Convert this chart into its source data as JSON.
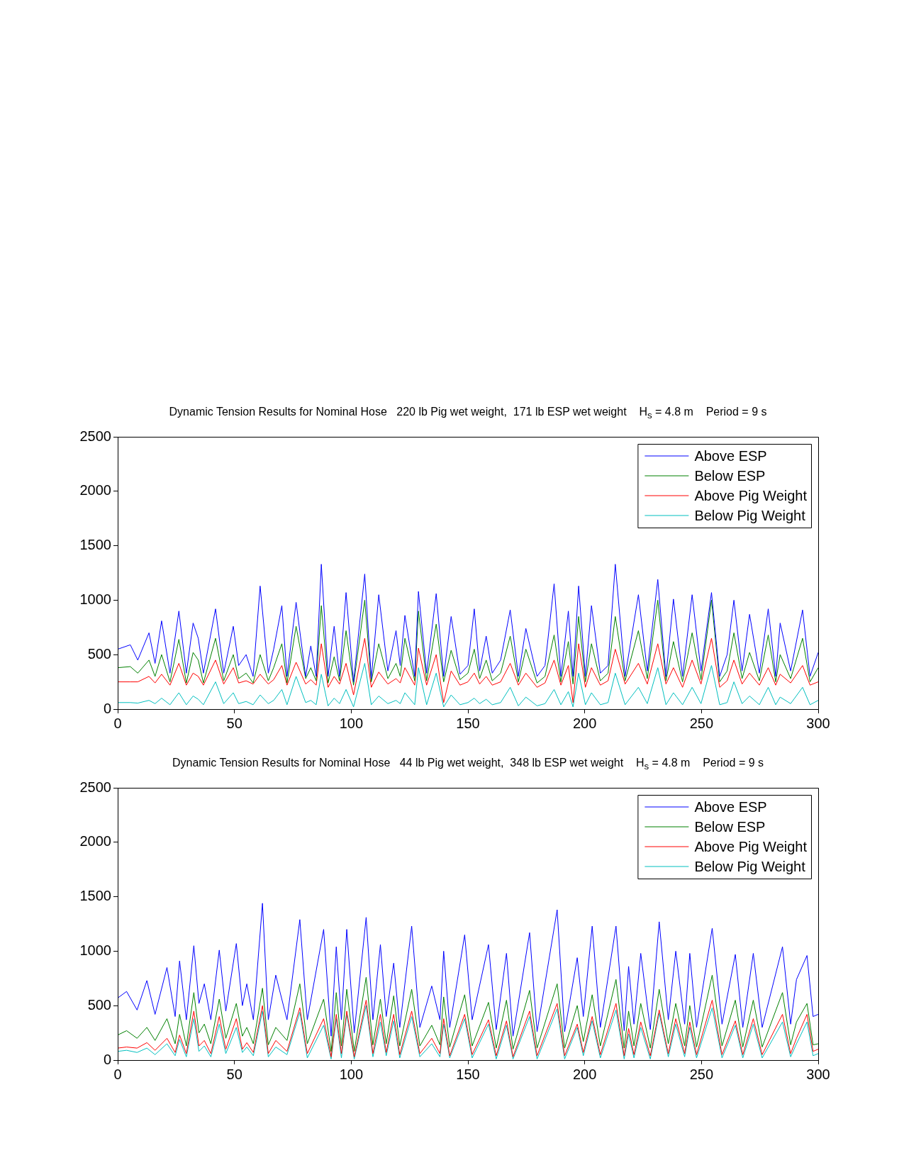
{
  "chart_data": [
    {
      "type": "line",
      "title": "Dynamic Tension Results for Nominal Hose   220 lb Pig wet weight,  171 lb ESP wet weight    H$_{s}$ = 4.8 m    Period = 9 s",
      "x": [
        0,
        5.4,
        8.6,
        13.4,
        16,
        18.8,
        22.4,
        26.2,
        29.4,
        32.3,
        34.5,
        36.7,
        41.9,
        45.4,
        49.5,
        51.8,
        55,
        58,
        61,
        64.5,
        66.8,
        70.3,
        72.5,
        76.4,
        80.5,
        82.7,
        85,
        87.2,
        90.1,
        92.7,
        95,
        97.8,
        101,
        105.8,
        108.6,
        111.8,
        115.7,
        119.2,
        121,
        123,
        127.2,
        128.8,
        132.3,
        136.4,
        139.6,
        142.8,
        146.6,
        150,
        152.7,
        155,
        157.8,
        160.4,
        164,
        168.1,
        171.6,
        174.8,
        179.6,
        183,
        186.9,
        189.8,
        193,
        195,
        197.4,
        200.3,
        202.9,
        206.7,
        210,
        213.1,
        217.3,
        223,
        226.8,
        231.3,
        234.8,
        238,
        241.9,
        246,
        249.8,
        254.3,
        257.8,
        261,
        263.9,
        267.4,
        270.6,
        274.8,
        278.6,
        281.8,
        283.7,
        288.2,
        293.3,
        296.5,
        300
      ],
      "series": [
        {
          "name": "Above ESP",
          "color": "#0000ff",
          "values": [
            550,
            590,
            450,
            700,
            420,
            810,
            330,
            900,
            330,
            790,
            650,
            330,
            920,
            330,
            760,
            400,
            500,
            300,
            1130,
            330,
            550,
            950,
            300,
            980,
            300,
            580,
            300,
            1330,
            300,
            760,
            300,
            1070,
            250,
            1240,
            280,
            1050,
            350,
            720,
            400,
            860,
            300,
            1080,
            330,
            1060,
            300,
            850,
            320,
            400,
            920,
            350,
            670,
            330,
            450,
            910,
            300,
            740,
            300,
            400,
            1150,
            300,
            900,
            300,
            1130,
            300,
            950,
            330,
            400,
            1330,
            300,
            1050,
            350,
            1190,
            300,
            1010,
            300,
            1050,
            350,
            1070,
            300,
            500,
            1000,
            350,
            870,
            330,
            920,
            300,
            790,
            350,
            910,
            300,
            520
          ]
        },
        {
          "name": "Below ESP",
          "color": "#008000",
          "values": [
            380,
            390,
            330,
            450,
            300,
            500,
            250,
            640,
            240,
            520,
            450,
            240,
            650,
            260,
            500,
            280,
            330,
            240,
            500,
            260,
            380,
            600,
            240,
            760,
            280,
            380,
            260,
            950,
            240,
            480,
            260,
            720,
            220,
            1000,
            250,
            600,
            280,
            420,
            300,
            650,
            260,
            900,
            260,
            780,
            250,
            540,
            270,
            330,
            550,
            280,
            450,
            260,
            330,
            670,
            250,
            550,
            240,
            300,
            680,
            250,
            620,
            230,
            850,
            250,
            600,
            260,
            330,
            850,
            260,
            720,
            280,
            1000,
            260,
            620,
            250,
            700,
            270,
            1000,
            250,
            350,
            700,
            280,
            520,
            260,
            680,
            250,
            500,
            280,
            650,
            250,
            380
          ]
        },
        {
          "name": "Above Pig Weight",
          "color": "#ff0000",
          "values": [
            250,
            250,
            250,
            300,
            240,
            320,
            220,
            420,
            220,
            330,
            300,
            220,
            450,
            230,
            380,
            240,
            260,
            230,
            320,
            230,
            270,
            400,
            220,
            430,
            230,
            270,
            220,
            600,
            200,
            300,
            230,
            420,
            130,
            650,
            200,
            340,
            230,
            280,
            240,
            380,
            220,
            560,
            220,
            500,
            60,
            350,
            220,
            250,
            330,
            230,
            300,
            220,
            250,
            420,
            220,
            330,
            200,
            240,
            450,
            220,
            400,
            60,
            600,
            200,
            380,
            220,
            260,
            550,
            230,
            420,
            230,
            600,
            230,
            380,
            200,
            450,
            230,
            650,
            200,
            260,
            450,
            230,
            330,
            220,
            380,
            220,
            320,
            240,
            400,
            220,
            250
          ]
        },
        {
          "name": "Below Pig Weight",
          "color": "#00bfbf",
          "values": [
            60,
            60,
            55,
            80,
            50,
            100,
            40,
            150,
            40,
            120,
            90,
            40,
            250,
            50,
            150,
            50,
            70,
            40,
            130,
            50,
            80,
            180,
            40,
            300,
            60,
            80,
            40,
            320,
            30,
            100,
            50,
            180,
            20,
            420,
            40,
            120,
            50,
            80,
            50,
            150,
            40,
            380,
            40,
            330,
            20,
            130,
            40,
            60,
            100,
            50,
            90,
            40,
            60,
            200,
            30,
            110,
            30,
            50,
            180,
            40,
            160,
            20,
            330,
            40,
            150,
            40,
            60,
            330,
            40,
            200,
            50,
            380,
            40,
            150,
            40,
            200,
            50,
            400,
            40,
            60,
            250,
            50,
            120,
            40,
            200,
            40,
            110,
            50,
            200,
            40,
            80
          ]
        }
      ],
      "xlim": [
        0,
        300
      ],
      "xticks": [
        0,
        50,
        100,
        150,
        200,
        250,
        300
      ],
      "ylim": [
        0,
        2500
      ],
      "yticks": [
        0,
        500,
        1000,
        1500,
        2000,
        2500
      ],
      "legend": "top right"
    },
    {
      "type": "line",
      "title": "Dynamic Tension Results for Nominal Hose   44 lb Pig wet weight,  348 lb ESP wet weight    H$_{s}$ = 4.8 m    Period = 9 s",
      "x": [
        0,
        3.8,
        8.3,
        12.5,
        16,
        21.1,
        24.6,
        26.5,
        29.4,
        32.6,
        34.8,
        37.1,
        39.9,
        43.5,
        46.3,
        50.8,
        53.4,
        55.3,
        58.1,
        62,
        64.5,
        67.7,
        72.5,
        78,
        81.2,
        88.2,
        91.4,
        93.6,
        95.8,
        98.1,
        101.3,
        106.4,
        109.3,
        112.5,
        115,
        118.2,
        120.8,
        125.9,
        129.4,
        134.5,
        138,
        139.6,
        142.2,
        148.6,
        151.8,
        158.8,
        162.1,
        166.5,
        169.3,
        176.4,
        179.6,
        188.2,
        191.4,
        196.8,
        199.4,
        203.2,
        206.7,
        213.4,
        216.9,
        218.8,
        221.1,
        224,
        228.1,
        231.9,
        235.8,
        239,
        242.8,
        245,
        247.9,
        254.6,
        258.8,
        264.5,
        267.7,
        272.2,
        276,
        284.7,
        288.2,
        290.7,
        295.2,
        297.8,
        300
      ],
      "series": [
        {
          "name": "Above ESP",
          "color": "#0000ff",
          "values": [
            570,
            630,
            460,
            730,
            420,
            850,
            400,
            910,
            370,
            1050,
            520,
            700,
            370,
            1010,
            450,
            1070,
            500,
            700,
            370,
            1440,
            370,
            780,
            370,
            1290,
            370,
            1200,
            220,
            1040,
            370,
            1200,
            250,
            1310,
            370,
            1060,
            400,
            890,
            300,
            1230,
            300,
            680,
            370,
            1000,
            300,
            1150,
            370,
            1060,
            280,
            980,
            220,
            1170,
            260,
            1380,
            260,
            940,
            400,
            1230,
            300,
            1230,
            270,
            860,
            330,
            980,
            280,
            1270,
            370,
            1000,
            330,
            980,
            300,
            1210,
            330,
            970,
            300,
            980,
            300,
            1040,
            330,
            740,
            960,
            400,
            420
          ]
        },
        {
          "name": "Below ESP",
          "color": "#008000",
          "values": [
            230,
            270,
            200,
            300,
            180,
            380,
            150,
            420,
            130,
            620,
            250,
            330,
            150,
            560,
            200,
            520,
            220,
            300,
            150,
            660,
            140,
            300,
            180,
            700,
            150,
            560,
            80,
            620,
            130,
            650,
            80,
            760,
            140,
            560,
            150,
            590,
            130,
            650,
            130,
            320,
            140,
            580,
            120,
            600,
            130,
            530,
            110,
            550,
            100,
            640,
            110,
            700,
            110,
            500,
            170,
            600,
            130,
            740,
            110,
            450,
            130,
            520,
            110,
            650,
            150,
            520,
            130,
            500,
            120,
            780,
            130,
            550,
            120,
            550,
            120,
            620,
            140,
            350,
            520,
            140,
            150
          ]
        },
        {
          "name": "Above Pig Weight",
          "color": "#ff0000",
          "values": [
            110,
            120,
            110,
            160,
            90,
            200,
            70,
            230,
            60,
            450,
            130,
            180,
            60,
            400,
            100,
            380,
            100,
            160,
            70,
            500,
            60,
            180,
            80,
            480,
            60,
            380,
            30,
            420,
            60,
            450,
            30,
            550,
            60,
            420,
            70,
            420,
            50,
            450,
            60,
            200,
            60,
            380,
            40,
            420,
            50,
            370,
            40,
            360,
            30,
            450,
            40,
            520,
            40,
            330,
            70,
            400,
            50,
            520,
            40,
            290,
            50,
            350,
            40,
            460,
            60,
            380,
            60,
            350,
            50,
            550,
            50,
            360,
            50,
            380,
            50,
            420,
            60,
            200,
            420,
            80,
            100
          ]
        },
        {
          "name": "Below Pig Weight",
          "color": "#00bfbf",
          "values": [
            80,
            90,
            70,
            110,
            50,
            150,
            40,
            190,
            30,
            380,
            80,
            130,
            30,
            330,
            60,
            300,
            70,
            120,
            40,
            450,
            30,
            120,
            50,
            440,
            20,
            320,
            10,
            380,
            20,
            420,
            10,
            500,
            30,
            350,
            40,
            360,
            20,
            400,
            30,
            150,
            30,
            330,
            20,
            380,
            20,
            330,
            10,
            320,
            10,
            400,
            10,
            470,
            10,
            300,
            40,
            360,
            20,
            460,
            10,
            240,
            20,
            300,
            10,
            430,
            30,
            330,
            30,
            300,
            20,
            480,
            20,
            320,
            20,
            330,
            20,
            350,
            30,
            150,
            350,
            40,
            60
          ]
        }
      ],
      "xlim": [
        0,
        300
      ],
      "xticks": [
        0,
        50,
        100,
        150,
        200,
        250,
        300
      ],
      "ylim": [
        0,
        2500
      ],
      "yticks": [
        0,
        500,
        1000,
        1500,
        2000,
        2500
      ],
      "legend": "top right"
    }
  ]
}
